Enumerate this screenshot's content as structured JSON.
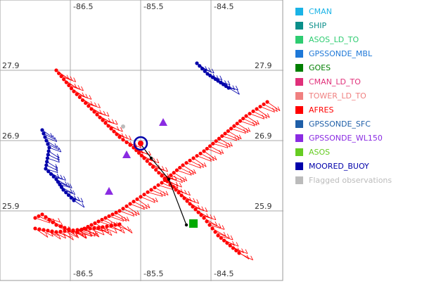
{
  "map": {
    "axes": {
      "lon_ticks_top": [
        "-86.5",
        "-85.5",
        "-84.5"
      ],
      "lon_ticks_bottom": [
        "-86.5",
        "-85.5",
        "-84.5"
      ],
      "lat_ticks_left": [
        "27.9",
        "26.9",
        "25.9"
      ],
      "lat_ticks_right": [
        "27.9",
        "26.9",
        "25.9"
      ]
    },
    "colors": {
      "afres": "#ff0000",
      "moored_buoy": "#0000aa",
      "gpssonde_wl150": "#8a2be2",
      "flagged": "#bbbbbb",
      "gpssonde_mbl": "#1e78d8",
      "track_line": "#000000",
      "end_marker": "#00aa00"
    },
    "tracks": {
      "afres_tracks": [
        {
          "id": "afres-track-nw-se",
          "lon": [
            -86.7,
            -86.45,
            -86.2,
            -86.0,
            -85.8,
            -85.6,
            -85.45,
            -85.2,
            -85.0,
            -84.8,
            -84.6,
            -84.4,
            -84.1
          ],
          "lat": [
            27.9,
            27.6,
            27.35,
            27.15,
            26.95,
            26.8,
            26.65,
            26.4,
            26.2,
            26.0,
            25.8,
            25.55,
            25.3
          ]
        },
        {
          "id": "afres-track-ne-sw",
          "lon": [
            -83.7,
            -84.0,
            -84.3,
            -84.6,
            -84.9,
            -85.2,
            -85.5,
            -85.8,
            -86.1,
            -86.4,
            -86.7,
            -86.9,
            -87.0
          ],
          "lat": [
            27.45,
            27.25,
            27.0,
            26.75,
            26.55,
            26.3,
            26.1,
            25.9,
            25.75,
            25.6,
            25.7,
            25.85,
            25.8
          ]
        },
        {
          "id": "afres-track-south-leg",
          "lon": [
            -87.0,
            -86.7,
            -86.4,
            -86.1,
            -85.8
          ],
          "lat": [
            25.65,
            25.6,
            25.63,
            25.66,
            25.71
          ]
        }
      ],
      "buoy_tracks": [
        {
          "id": "buoy-track-west",
          "lon": [
            -86.9,
            -86.8,
            -86.85,
            -86.7,
            -86.6,
            -86.45
          ],
          "lat": [
            27.05,
            26.8,
            26.5,
            26.35,
            26.2,
            26.05
          ]
        },
        {
          "id": "buoy-track-north",
          "lon": [
            -84.7,
            -84.55,
            -84.4,
            -84.25
          ],
          "lat": [
            28.0,
            27.85,
            27.75,
            27.65
          ]
        }
      ],
      "sonde_path": {
        "lon": [
          -85.5,
          -85.35,
          -85.1,
          -84.85
        ],
        "lat": [
          26.85,
          26.65,
          26.35,
          25.7
        ]
      },
      "sonde_end": {
        "lon": -84.75,
        "lat": 25.72
      },
      "circle_center": {
        "lon": -85.5,
        "lat": 26.86
      },
      "triangles": [
        {
          "lon": -85.18,
          "lat": 27.16
        },
        {
          "lon": -85.7,
          "lat": 26.7
        },
        {
          "lon": -85.95,
          "lat": 26.18
        }
      ]
    }
  },
  "legend": {
    "items": [
      {
        "label": "CMAN",
        "color": "#1ab3e6"
      },
      {
        "label": "SHIP",
        "color": "#0a8f8a"
      },
      {
        "label": "ASOS_LD_TO",
        "color": "#2ecc71"
      },
      {
        "label": "GPSSONDE_MBL",
        "color": "#1e78d8"
      },
      {
        "label": "GOES",
        "color": "#007f00"
      },
      {
        "label": "CMAN_LD_TO",
        "color": "#e0307a"
      },
      {
        "label": "TOWER_LD_TO",
        "color": "#f08080"
      },
      {
        "label": "AFRES",
        "color": "#ff0000"
      },
      {
        "label": "GPSSONDE_SFC",
        "color": "#1f5fa8"
      },
      {
        "label": "GPSSONDE_WL150",
        "color": "#8a2be2"
      },
      {
        "label": "ASOS",
        "color": "#66cc22"
      },
      {
        "label": "MOORED_BUOY",
        "color": "#0000aa"
      },
      {
        "label": "Flagged observations",
        "color": "#bbbbbb"
      }
    ]
  }
}
